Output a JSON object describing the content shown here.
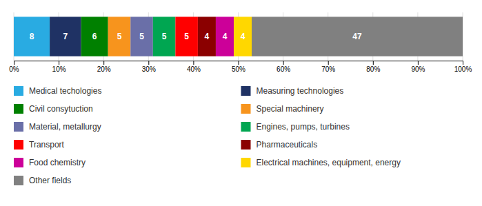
{
  "chart_data": {
    "type": "bar",
    "orientation": "horizontal",
    "stacked": true,
    "categories": [
      null
    ],
    "series": [
      {
        "name": "Medical techologies",
        "color": "#29ABE2",
        "values": [
          8
        ]
      },
      {
        "name": "Measuring technologies",
        "color": "#1F3264",
        "values": [
          7
        ]
      },
      {
        "name": "Civil consytuction",
        "color": "#008000",
        "values": [
          6
        ]
      },
      {
        "name": "Special machinery",
        "color": "#F7941D",
        "values": [
          5
        ]
      },
      {
        "name": "Material, metallurgy",
        "color": "#6A6FA8",
        "values": [
          5
        ]
      },
      {
        "name": "Engines, pumps, turbines",
        "color": "#00A651",
        "values": [
          5
        ]
      },
      {
        "name": "Transport",
        "color": "#FF0000",
        "values": [
          5
        ]
      },
      {
        "name": "Pharmaceuticals",
        "color": "#8B0000",
        "values": [
          4
        ]
      },
      {
        "name": "Food chemistry",
        "color": "#CC0099",
        "values": [
          4
        ]
      },
      {
        "name": "Electrical machines, equipment, energy",
        "color": "#FFD700",
        "values": [
          4
        ]
      },
      {
        "name": "Other fields",
        "color": "#808080",
        "values": [
          47
        ]
      }
    ],
    "xlim": [
      0,
      100
    ],
    "xticks": [
      {
        "value": 0,
        "label": "0%"
      },
      {
        "value": 10,
        "label": "10%"
      },
      {
        "value": 20,
        "label": "20%"
      },
      {
        "value": 30,
        "label": "30%"
      },
      {
        "value": 40,
        "label": "40%"
      },
      {
        "value": 50,
        "label": "50%"
      },
      {
        "value": 60,
        "label": "60%"
      },
      {
        "value": 70,
        "label": "70%"
      },
      {
        "value": 80,
        "label": "80%"
      },
      {
        "value": 90,
        "label": "90%"
      },
      {
        "value": 100,
        "label": "100%"
      }
    ],
    "grid": true,
    "data_labels": true,
    "tick_labels": "x",
    "legend": "bottom"
  }
}
